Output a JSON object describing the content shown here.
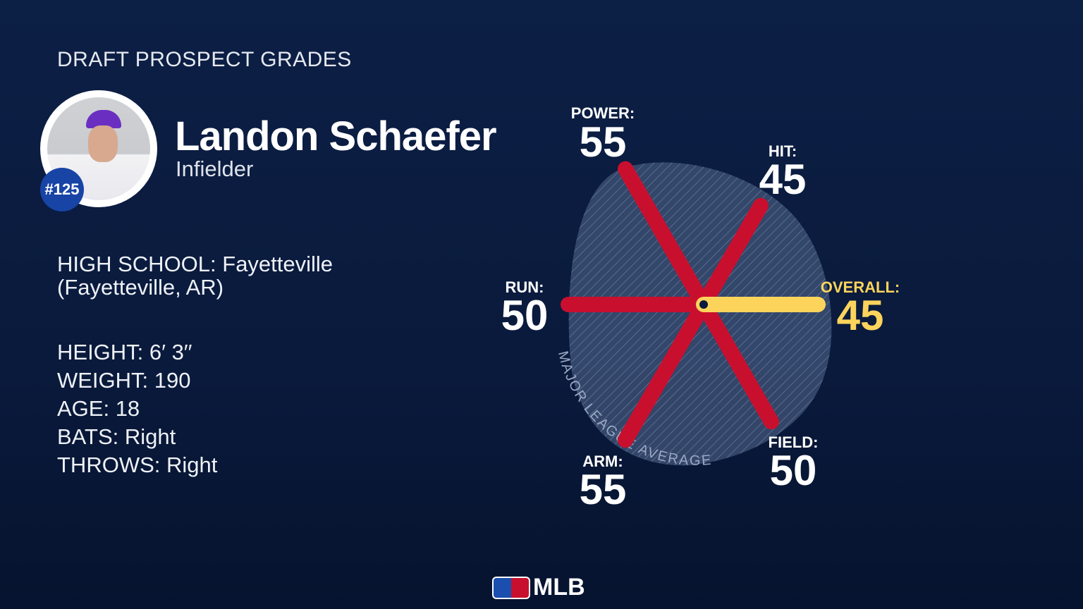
{
  "header": {
    "title": "DRAFT PROSPECT GRADES"
  },
  "player": {
    "name": "Landon Schaefer",
    "position": "Infielder",
    "rank": "#125",
    "school_line1": "HIGH SCHOOL: Fayetteville",
    "school_line2": "(Fayetteville, AR)",
    "height": "HEIGHT: 6′ 3′′",
    "weight": "WEIGHT: 190",
    "age": "AGE: 18",
    "bats": "BATS: Right",
    "throws": "THROWS: Right"
  },
  "chart_data": {
    "type": "radial",
    "reference_label": "MAJOR LEAGUE AVERAGE",
    "reference_value": 50,
    "tools": [
      {
        "label": "POWER:",
        "value": 55,
        "color": "#c8102e"
      },
      {
        "label": "HIT:",
        "value": 45,
        "color": "#c8102e"
      },
      {
        "label": "OVERALL:",
        "value": 45,
        "color": "#fcd45c"
      },
      {
        "label": "FIELD:",
        "value": 50,
        "color": "#c8102e"
      },
      {
        "label": "ARM:",
        "value": 55,
        "color": "#c8102e"
      },
      {
        "label": "RUN:",
        "value": 50,
        "color": "#c8102e"
      }
    ]
  },
  "footer": {
    "logo": "MLB"
  }
}
